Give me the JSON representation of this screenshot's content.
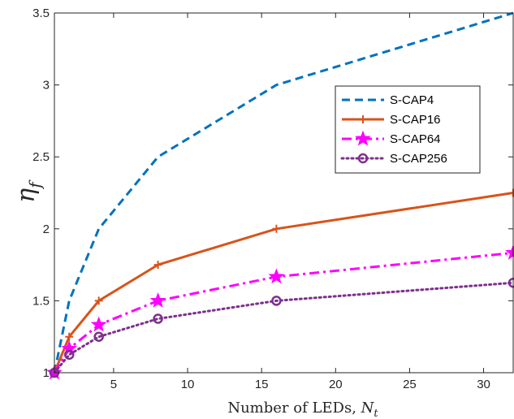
{
  "chart_data": {
    "type": "line",
    "title": "",
    "xlabel": "Number of LEDs, ",
    "xlabel_var": "N",
    "xlabel_sub": "t",
    "ylabel": "η",
    "ylabel_sub": "f",
    "xlim": [
      1,
      32
    ],
    "ylim": [
      1,
      3.5
    ],
    "xticks": [
      5,
      10,
      15,
      20,
      25,
      30
    ],
    "yticks": [
      1,
      1.5,
      2,
      2.5,
      3,
      3.5
    ],
    "grid": false,
    "legend_position": "upper-right-inside",
    "series": [
      {
        "name": "S-CAP4",
        "color": "#0072BD",
        "dash": "dashed",
        "marker": "none",
        "x": [
          1,
          2,
          4,
          8,
          16,
          32
        ],
        "y": [
          1.0,
          1.5,
          2.0,
          2.5,
          3.0,
          3.5
        ]
      },
      {
        "name": "S-CAP16",
        "color": "#D95319",
        "dash": "solid",
        "marker": "plus",
        "x": [
          1,
          2,
          4,
          8,
          16,
          32
        ],
        "y": [
          1.0,
          1.25,
          1.5,
          1.75,
          2.0,
          2.25
        ]
      },
      {
        "name": "S-CAP64",
        "color": "#FF00FF",
        "dash": "dashdot",
        "marker": "star",
        "x": [
          1,
          2,
          4,
          8,
          16,
          32
        ],
        "y": [
          1.0,
          1.167,
          1.333,
          1.5,
          1.667,
          1.833
        ]
      },
      {
        "name": "S-CAP256",
        "color": "#7E2F8E",
        "dash": "dotted",
        "marker": "circle",
        "x": [
          1,
          2,
          4,
          8,
          16,
          32
        ],
        "y": [
          1.0,
          1.125,
          1.25,
          1.375,
          1.5,
          1.625
        ]
      }
    ]
  }
}
